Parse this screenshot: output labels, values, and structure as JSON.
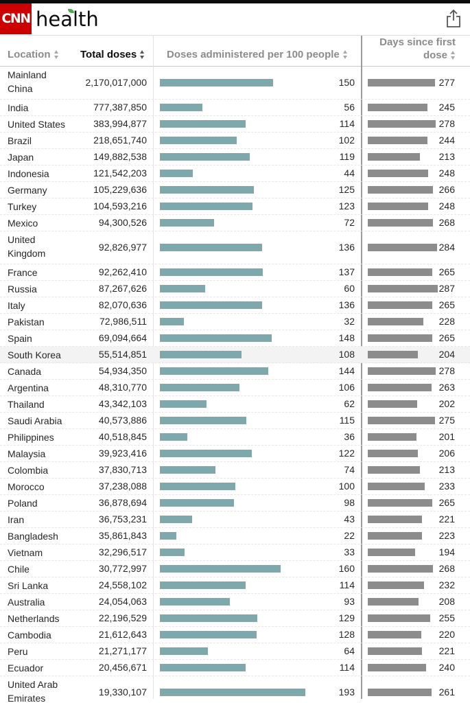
{
  "header": {
    "logo_text": "CNN",
    "section_title": "health",
    "share_icon": "share-icon"
  },
  "table": {
    "columns": [
      {
        "label": "Location",
        "sorted": false
      },
      {
        "label": "Total doses",
        "sorted": true
      },
      {
        "label": "Doses administered per 100 people",
        "sorted": false
      },
      {
        "label": "Days since first",
        "label_line2": "dose",
        "sorted": false
      }
    ],
    "max_doses_per_100": 193,
    "max_days": 287,
    "colors": {
      "doses_bar": "#7da9ad",
      "days_bar": "#8c8c8c",
      "logo_red": "#cc0000",
      "leaf_green": "#4fa64b"
    },
    "rows": [
      {
        "location": "Mainland China",
        "total": "2,170,017,000",
        "per100": 150,
        "days": 277
      },
      {
        "location": "India",
        "total": "777,387,850",
        "per100": 56,
        "days": 245
      },
      {
        "location": "United States",
        "total": "383,994,877",
        "per100": 114,
        "days": 278
      },
      {
        "location": "Brazil",
        "total": "218,651,740",
        "per100": 102,
        "days": 244
      },
      {
        "location": "Japan",
        "total": "149,882,538",
        "per100": 119,
        "days": 213
      },
      {
        "location": "Indonesia",
        "total": "121,542,203",
        "per100": 44,
        "days": 248
      },
      {
        "location": "Germany",
        "total": "105,229,636",
        "per100": 125,
        "days": 266
      },
      {
        "location": "Turkey",
        "total": "104,593,216",
        "per100": 123,
        "days": 248
      },
      {
        "location": "Mexico",
        "total": "94,300,526",
        "per100": 72,
        "days": 268
      },
      {
        "location": "United Kingdom",
        "total": "92,826,977",
        "per100": 136,
        "days": 284
      },
      {
        "location": "France",
        "total": "92,262,410",
        "per100": 137,
        "days": 265
      },
      {
        "location": "Russia",
        "total": "87,267,626",
        "per100": 60,
        "days": 287
      },
      {
        "location": "Italy",
        "total": "82,070,636",
        "per100": 136,
        "days": 265
      },
      {
        "location": "Pakistan",
        "total": "72,986,511",
        "per100": 32,
        "days": 228
      },
      {
        "location": "Spain",
        "total": "69,094,664",
        "per100": 148,
        "days": 265
      },
      {
        "location": "South Korea",
        "total": "55,514,851",
        "per100": 108,
        "days": 204,
        "highlight": true
      },
      {
        "location": "Canada",
        "total": "54,934,350",
        "per100": 144,
        "days": 278
      },
      {
        "location": "Argentina",
        "total": "48,310,770",
        "per100": 106,
        "days": 263
      },
      {
        "location": "Thailand",
        "total": "43,342,103",
        "per100": 62,
        "days": 202
      },
      {
        "location": "Saudi Arabia",
        "total": "40,573,886",
        "per100": 115,
        "days": 275
      },
      {
        "location": "Philippines",
        "total": "40,518,845",
        "per100": 36,
        "days": 201
      },
      {
        "location": "Malaysia",
        "total": "39,923,416",
        "per100": 122,
        "days": 206
      },
      {
        "location": "Colombia",
        "total": "37,830,713",
        "per100": 74,
        "days": 213
      },
      {
        "location": "Morocco",
        "total": "37,238,088",
        "per100": 100,
        "days": 233
      },
      {
        "location": "Poland",
        "total": "36,878,694",
        "per100": 98,
        "days": 265
      },
      {
        "location": "Iran",
        "total": "36,753,231",
        "per100": 43,
        "days": 221
      },
      {
        "location": "Bangladesh",
        "total": "35,861,843",
        "per100": 22,
        "days": 223
      },
      {
        "location": "Vietnam",
        "total": "32,296,517",
        "per100": 33,
        "days": 194
      },
      {
        "location": "Chile",
        "total": "30,772,997",
        "per100": 160,
        "days": 268
      },
      {
        "location": "Sri Lanka",
        "total": "24,558,102",
        "per100": 114,
        "days": 232
      },
      {
        "location": "Australia",
        "total": "24,054,063",
        "per100": 93,
        "days": 208
      },
      {
        "location": "Netherlands",
        "total": "22,196,529",
        "per100": 129,
        "days": 255
      },
      {
        "location": "Cambodia",
        "total": "21,612,643",
        "per100": 128,
        "days": 220
      },
      {
        "location": "Peru",
        "total": "21,271,177",
        "per100": 64,
        "days": 221
      },
      {
        "location": "Ecuador",
        "total": "20,456,671",
        "per100": 114,
        "days": 240
      },
      {
        "location": "United Arab Emirates",
        "total": "19,330,107",
        "per100": 193,
        "days": 261
      }
    ]
  }
}
